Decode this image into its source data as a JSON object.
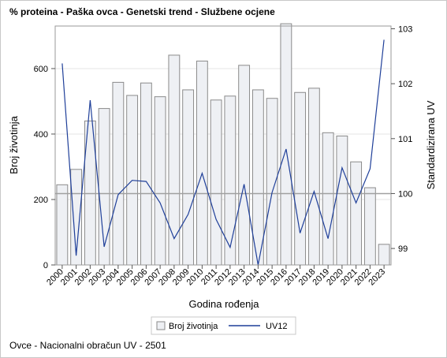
{
  "title": "% proteina - Paška ovca - Genetski trend - Službene ocjene",
  "footnote": "Ovce - Nacionalni obračun UV - 2501",
  "colors": {
    "bar_fill": "#eef0f4",
    "bar_stroke": "#8a8a8a",
    "line": "#1f3f99",
    "reference": "#a0a0a0",
    "grid": "#e6e6e6"
  },
  "chart_data": {
    "type": "bar",
    "categories": [
      "2000",
      "2001",
      "2002",
      "2003",
      "2004",
      "2005",
      "2006",
      "2007",
      "2008",
      "2009",
      "2010",
      "2011",
      "2012",
      "2013",
      "2014",
      "2015",
      "2016",
      "2017",
      "2018",
      "2019",
      "2020",
      "2021",
      "2022",
      "2023"
    ],
    "xlabel": "Godina rođenja",
    "ylabel": "Broj životinja",
    "y2label": "Standardizirana UV",
    "ylim": [
      0,
      730
    ],
    "y2lim": [
      98.7,
      103.05
    ],
    "yticks": [
      0,
      200,
      400,
      600
    ],
    "y2ticks": [
      99,
      100,
      101,
      102,
      103
    ],
    "reference_y2": 100,
    "grid": true,
    "legend_position": "bottom",
    "series": [
      {
        "name": "Broj životinja",
        "type": "bar",
        "axis": "left",
        "values": [
          245,
          292,
          440,
          478,
          558,
          518,
          556,
          514,
          641,
          535,
          623,
          504,
          516,
          610,
          535,
          509,
          737,
          527,
          540,
          404,
          394,
          315,
          236,
          63
        ]
      },
      {
        "name": "UV12",
        "type": "line",
        "axis": "right",
        "values": [
          102.37,
          98.87,
          101.7,
          99.03,
          99.98,
          100.24,
          100.22,
          99.83,
          99.18,
          99.62,
          100.37,
          99.53,
          99.02,
          100.17,
          98.7,
          100.02,
          100.81,
          99.28,
          100.04,
          99.18,
          100.47,
          99.83,
          100.45,
          102.8
        ]
      }
    ]
  }
}
